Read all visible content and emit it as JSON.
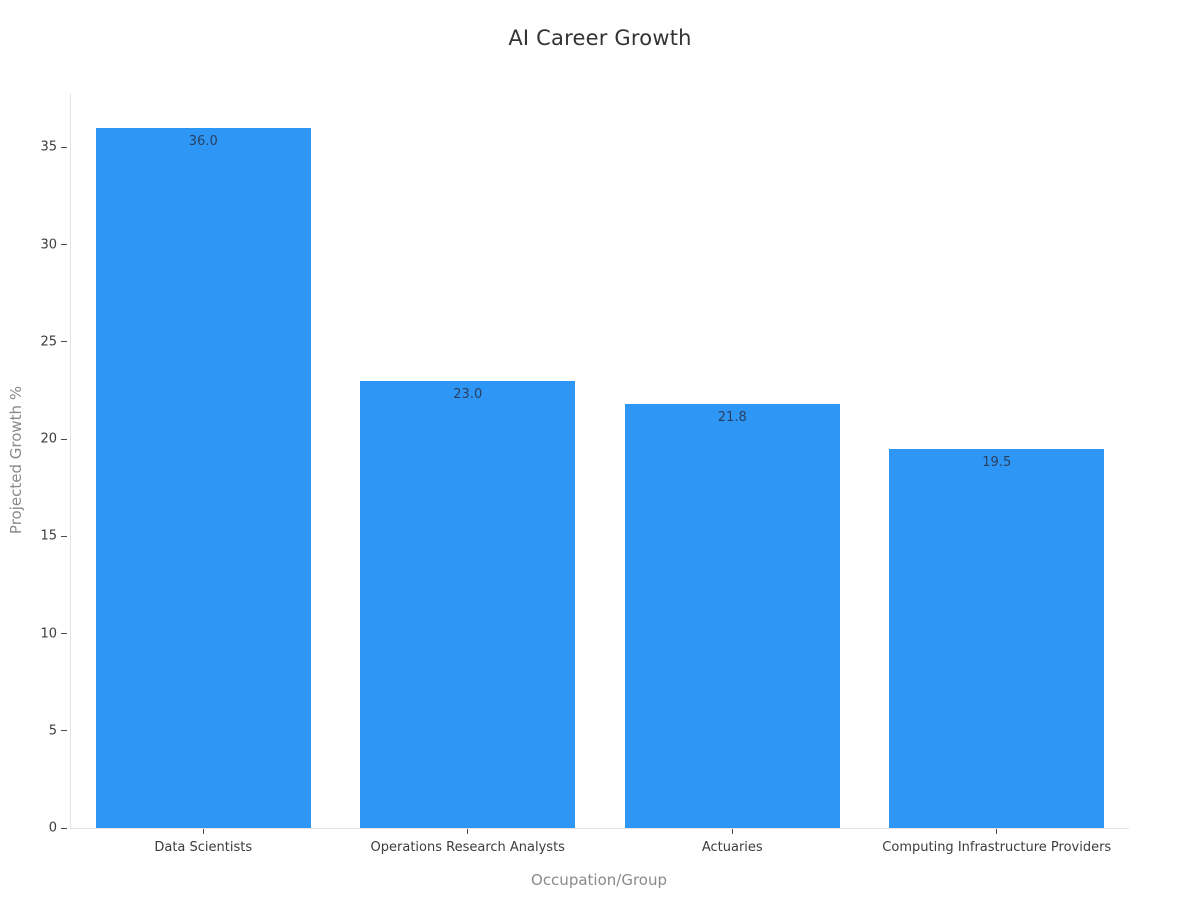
{
  "chart_data": {
    "type": "bar",
    "title": "AI Career Growth",
    "xlabel": "Occupation/Group",
    "ylabel": "Projected Growth %",
    "categories": [
      "Data Scientists",
      "Operations Research Analysts",
      "Actuaries",
      "Computing Infrastructure Providers"
    ],
    "values": [
      36.0,
      23.0,
      21.8,
      19.5
    ],
    "value_labels": [
      "36.0",
      "23.0",
      "21.8",
      "19.5"
    ],
    "yticks": [
      0,
      5,
      10,
      15,
      20,
      25,
      30,
      35
    ],
    "ylim": [
      0,
      37.8
    ],
    "grid": false,
    "legend_position": "none",
    "colors": {
      "bar": "#2E96F5",
      "value_label": "#2a3f5f",
      "tick_label": "#3c3c3c",
      "axis_title": "#8a8a8a",
      "title": "#333333",
      "axis_line": "#e4e4e4"
    }
  }
}
